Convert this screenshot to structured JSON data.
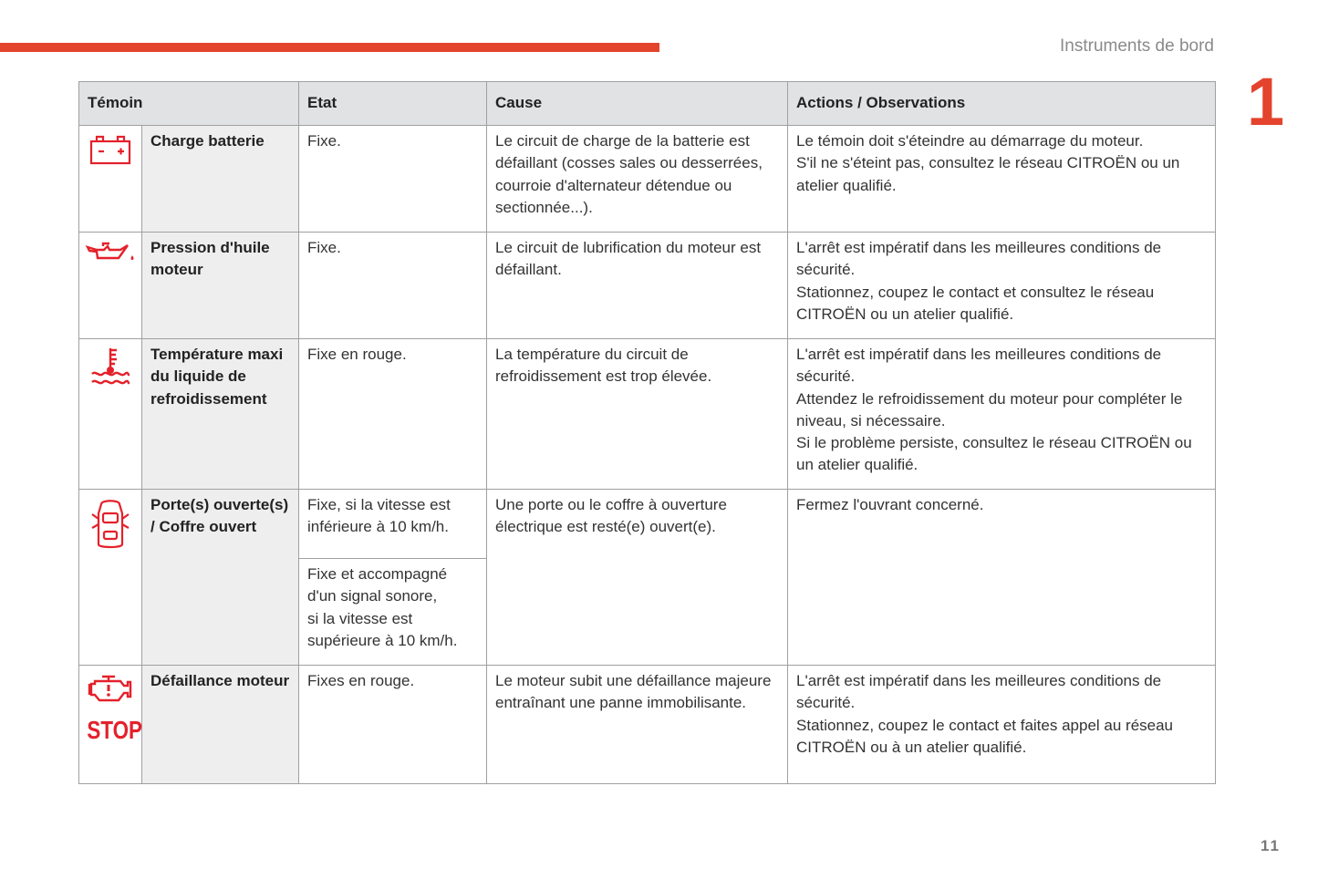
{
  "header": {
    "section": "Instruments de bord",
    "chapter": "1",
    "page_number": "11",
    "accent": "#e4432d"
  },
  "table": {
    "columns": [
      "Témoin",
      "Etat",
      "Cause",
      "Actions / Observations"
    ],
    "rows": [
      {
        "icon": "battery-icon",
        "name": "Charge batterie",
        "etat": "Fixe.",
        "cause": "Le circuit de charge de la batterie est défaillant (cosses sales ou desserrées, courroie d'alternateur détendue ou sectionnée...).",
        "actions": "Le témoin doit s'éteindre au démarrage du moteur.\nS'il ne s'éteint pas, consultez le réseau CITROËN ou un atelier qualifié."
      },
      {
        "icon": "oil-can-icon",
        "name": "Pression d'huile moteur",
        "etat": "Fixe.",
        "cause": "Le circuit de lubrification du moteur est défaillant.",
        "actions": "L'arrêt est impératif dans les meilleures conditions de sécurité.\nStationnez, coupez le contact et consultez le réseau CITROËN ou un atelier qualifié."
      },
      {
        "icon": "coolant-temperature-icon",
        "name": "Température maxi du liquide de refroidissement",
        "etat": "Fixe en rouge.",
        "cause": "La température du circuit de refroidissement est trop élevée.",
        "actions": "L'arrêt est impératif dans les meilleures conditions de sécurité.\nAttendez le refroidissement du moteur pour compléter le niveau, si nécessaire.\nSi le problème persiste, consultez le réseau CITROËN ou un atelier qualifié."
      },
      {
        "icon": "door-open-icon",
        "name": "Porte(s) ouverte(s) / Coffre ouvert",
        "etat": "Fixe, si la vitesse est inférieure à 10 km/h.",
        "etat2": "Fixe et accompagné d'un signal sonore,\nsi la vitesse est supérieure à 10 km/h.",
        "cause": "Une porte ou le coffre à ouverture électrique est resté(e) ouvert(e).",
        "actions": "Fermez l'ouvrant concerné."
      },
      {
        "icon": "engine-fault-icon",
        "icon_text": "STOP",
        "name": "Défaillance moteur",
        "etat": "Fixes en rouge.",
        "cause": "Le moteur subit une défaillance majeure entraînant une panne immobilisante.",
        "actions": "L'arrêt est impératif dans les meilleures conditions de sécurité.\nStationnez, coupez le contact et faites appel au réseau CITROËN ou à un atelier qualifié."
      }
    ]
  }
}
